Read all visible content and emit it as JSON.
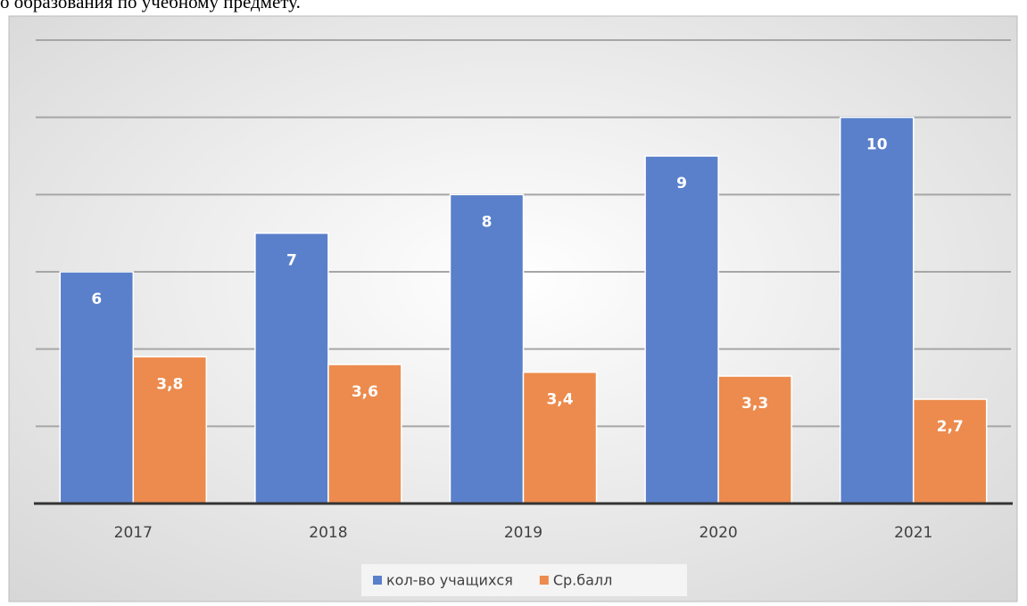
{
  "caption": "о образования по учебному предмету.",
  "chart_data": {
    "type": "bar",
    "categories": [
      "2017",
      "2018",
      "2019",
      "2020",
      "2021"
    ],
    "series": [
      {
        "name": "кол-во учащихся",
        "color": "#5a80cb",
        "values": [
          6,
          7,
          8,
          9,
          10
        ]
      },
      {
        "name": "Ср.балл",
        "color": "#ec8b4d",
        "values": [
          3.8,
          3.6,
          3.4,
          3.3,
          2.7
        ],
        "value_labels": [
          "3,8",
          "3,6",
          "3,4",
          "3,3",
          "2,7"
        ]
      }
    ],
    "ylim": [
      0,
      12
    ],
    "yticks": [
      0,
      2,
      4,
      6,
      8,
      10,
      12
    ],
    "grid": true,
    "legend": "bottom"
  }
}
